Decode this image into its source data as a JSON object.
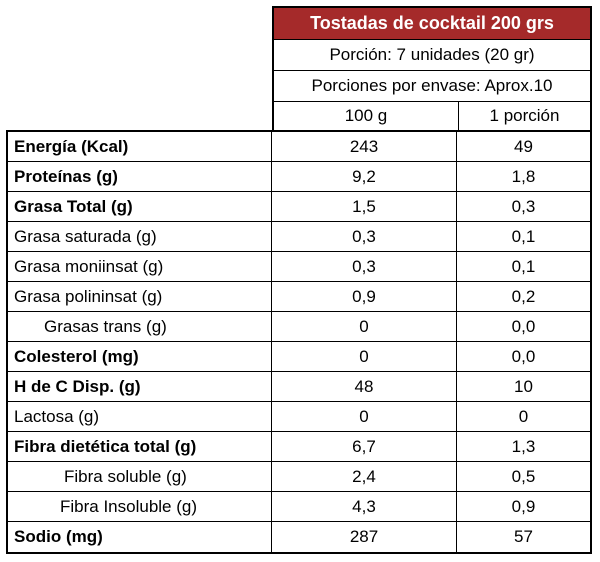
{
  "header": {
    "title": "Tostadas de cocktail 200 grs",
    "title_bg": "#a52a2a",
    "portion": "Porción: 7 unidades (20 gr)",
    "servings": "Porciones por envase: Aprox.10",
    "col1": "100 g",
    "col2": "1 porción"
  },
  "rows": [
    {
      "label": "Energía (Kcal)",
      "v100": "243",
      "vpor": "49"
    },
    {
      "label": "Proteínas (g)",
      "v100": "9,2",
      "vpor": "1,8"
    },
    {
      "label": "Grasa Total (g)",
      "v100": "1,5",
      "vpor": "0,3"
    },
    {
      "label": "Grasa saturada (g)",
      "v100": "0,3",
      "vpor": "0,1"
    },
    {
      "label": "Grasa moniinsat (g)",
      "v100": "0,3",
      "vpor": "0,1"
    },
    {
      "label": "Grasa polininsat (g)",
      "v100": "0,9",
      "vpor": "0,2"
    },
    {
      "label": "Grasas trans (g)",
      "v100": "0",
      "vpor": "0,0"
    },
    {
      "label": "Colesterol (mg)",
      "v100": "0",
      "vpor": "0,0"
    },
    {
      "label": "H de C Disp. (g)",
      "v100": "48",
      "vpor": "10"
    },
    {
      "label": "Lactosa (g)",
      "v100": "0",
      "vpor": "0"
    },
    {
      "label": "Fibra dietética total (g)",
      "v100": "6,7",
      "vpor": "1,3"
    },
    {
      "label": "Fibra soluble (g)",
      "v100": "2,4",
      "vpor": "0,5"
    },
    {
      "label": "Fibra Insoluble (g)",
      "v100": "4,3",
      "vpor": "0,9"
    },
    {
      "label": "Sodio (mg)",
      "v100": "287",
      "vpor": "57"
    }
  ]
}
